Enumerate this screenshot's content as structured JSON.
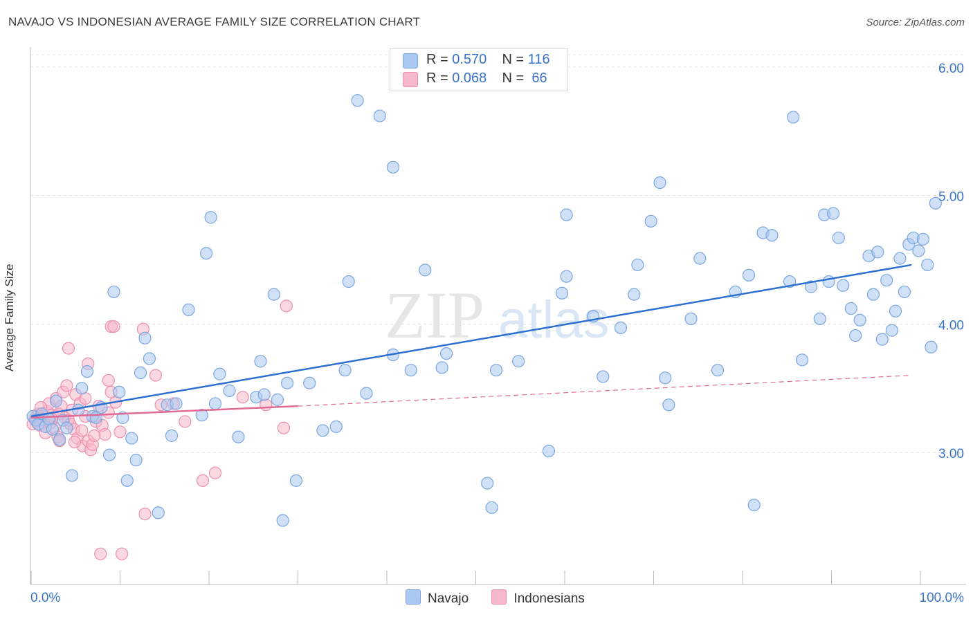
{
  "title": "NAVAJO VS INDONESIAN AVERAGE FAMILY SIZE CORRELATION CHART",
  "source": "Source: ZipAtlas.com",
  "watermark": {
    "zip": "ZIP",
    "atlas": "atlas"
  },
  "legend_top": [
    {
      "r_label": "R =",
      "r_value": "0.570",
      "n_label": "N =",
      "n_value": "116"
    },
    {
      "r_label": "R =",
      "r_value": "0.068",
      "n_label": "N =",
      "n_value": "66"
    }
  ],
  "legend_bottom": [
    "Navajo",
    "Indonesians"
  ],
  "colors": {
    "navajo_fill": "#aac8f0",
    "navajo_stroke": "#7aa6e0",
    "navajo_line": "#2b6fd0",
    "indo_fill": "#f6b8cb",
    "indo_stroke": "#ee8fae",
    "indo_line": "#e06a94",
    "axis_label": "#3a74c9",
    "grid": "#dddddd"
  },
  "chart_data": {
    "type": "scatter",
    "title": "NAVAJO VS INDONESIAN AVERAGE FAMILY SIZE CORRELATION CHART",
    "xlabel": "",
    "ylabel": "Average Family Size",
    "xlim": [
      0,
      100
    ],
    "ylim": [
      2.0,
      6.1
    ],
    "x_tick_labels": [
      "0.0%",
      "100.0%"
    ],
    "y_ticks": [
      3.0,
      4.0,
      5.0,
      6.0
    ],
    "y_tick_labels": [
      "3.00",
      "4.00",
      "5.00",
      "6.00"
    ],
    "grid": true,
    "series": [
      {
        "name": "Navajo",
        "trend": {
          "x": [
            0,
            99
          ],
          "y": [
            3.28,
            4.46
          ]
        },
        "points": [
          [
            0.2,
            3.28
          ],
          [
            0.5,
            3.25
          ],
          [
            0.8,
            3.22
          ],
          [
            1.2,
            3.3
          ],
          [
            1.6,
            3.2
          ],
          [
            2,
            3.26
          ],
          [
            2.4,
            3.18
          ],
          [
            2.8,
            3.4
          ],
          [
            3.2,
            3.1
          ],
          [
            3.6,
            3.25
          ],
          [
            4,
            3.19
          ],
          [
            4.6,
            2.82
          ],
          [
            5.3,
            3.33
          ],
          [
            5.7,
            3.5
          ],
          [
            6.3,
            3.63
          ],
          [
            6.9,
            3.28
          ],
          [
            7.3,
            3.27
          ],
          [
            7.9,
            3.35
          ],
          [
            8.8,
            2.98
          ],
          [
            9.3,
            4.25
          ],
          [
            9.9,
            3.47
          ],
          [
            10.3,
            3.27
          ],
          [
            10.8,
            2.78
          ],
          [
            11.3,
            3.11
          ],
          [
            11.8,
            2.94
          ],
          [
            12.3,
            3.62
          ],
          [
            12.8,
            3.89
          ],
          [
            13.3,
            3.73
          ],
          [
            14.3,
            2.53
          ],
          [
            15.3,
            3.37
          ],
          [
            15.8,
            3.13
          ],
          [
            16.3,
            3.38
          ],
          [
            17.7,
            4.11
          ],
          [
            19.2,
            3.29
          ],
          [
            19.7,
            4.55
          ],
          [
            20.2,
            4.83
          ],
          [
            20.7,
            3.38
          ],
          [
            21.2,
            3.61
          ],
          [
            22.3,
            3.48
          ],
          [
            23.3,
            3.12
          ],
          [
            25.3,
            3.43
          ],
          [
            25.8,
            3.71
          ],
          [
            26.2,
            3.45
          ],
          [
            27.3,
            4.23
          ],
          [
            27.7,
            3.41
          ],
          [
            28.3,
            2.47
          ],
          [
            28.8,
            3.54
          ],
          [
            29.8,
            2.78
          ],
          [
            31.3,
            3.54
          ],
          [
            32.8,
            3.17
          ],
          [
            34.3,
            3.2
          ],
          [
            35.3,
            3.64
          ],
          [
            35.7,
            4.33
          ],
          [
            36.7,
            5.74
          ],
          [
            37.7,
            3.46
          ],
          [
            39.2,
            5.62
          ],
          [
            40.7,
            3.76
          ],
          [
            40.7,
            5.22
          ],
          [
            42.7,
            3.64
          ],
          [
            44.3,
            4.42
          ],
          [
            46.2,
            3.66
          ],
          [
            46.7,
            3.77
          ],
          [
            51.3,
            2.76
          ],
          [
            51.8,
            2.57
          ],
          [
            52.3,
            3.64
          ],
          [
            54.8,
            3.71
          ],
          [
            58.2,
            3.01
          ],
          [
            59.7,
            4.24
          ],
          [
            60.2,
            4.37
          ],
          [
            60.2,
            4.85
          ],
          [
            63.2,
            4.06
          ],
          [
            64.3,
            3.59
          ],
          [
            66.3,
            3.97
          ],
          [
            67.8,
            4.23
          ],
          [
            68.2,
            4.46
          ],
          [
            69.7,
            4.8
          ],
          [
            70.7,
            5.1
          ],
          [
            71.3,
            3.58
          ],
          [
            71.7,
            3.37
          ],
          [
            74.2,
            4.04
          ],
          [
            75.2,
            4.51
          ],
          [
            77.2,
            3.64
          ],
          [
            79.2,
            4.25
          ],
          [
            80.7,
            4.38
          ],
          [
            81.3,
            2.59
          ],
          [
            82.3,
            4.71
          ],
          [
            83.3,
            4.69
          ],
          [
            85.3,
            4.33
          ],
          [
            85.7,
            5.61
          ],
          [
            86.7,
            3.72
          ],
          [
            87.7,
            4.29
          ],
          [
            88.7,
            4.04
          ],
          [
            89.2,
            4.85
          ],
          [
            89.7,
            4.33
          ],
          [
            90.2,
            4.86
          ],
          [
            90.8,
            4.67
          ],
          [
            91.3,
            4.3
          ],
          [
            92.2,
            4.12
          ],
          [
            92.7,
            3.91
          ],
          [
            93.2,
            4.03
          ],
          [
            94.2,
            4.53
          ],
          [
            94.7,
            4.23
          ],
          [
            95.2,
            4.56
          ],
          [
            95.7,
            3.88
          ],
          [
            96.2,
            4.34
          ],
          [
            96.8,
            3.95
          ],
          [
            97.2,
            4.1
          ],
          [
            97.7,
            4.51
          ],
          [
            98.2,
            4.25
          ],
          [
            98.7,
            4.62
          ],
          [
            99.2,
            4.67
          ],
          [
            99.8,
            4.57
          ],
          [
            100.3,
            4.66
          ],
          [
            100.8,
            4.46
          ],
          [
            101.2,
            3.82
          ],
          [
            101.7,
            4.94
          ]
        ]
      },
      {
        "name": "Indonesians",
        "trend": {
          "x": [
            0,
            30
          ],
          "y": [
            3.27,
            3.36
          ]
        },
        "trend_extended": {
          "x": [
            30,
            99
          ],
          "y": [
            3.36,
            3.6
          ]
        },
        "points": [
          [
            0.2,
            3.22
          ],
          [
            0.4,
            3.26
          ],
          [
            0.6,
            3.24
          ],
          [
            0.8,
            3.3
          ],
          [
            1,
            3.21
          ],
          [
            1.2,
            3.28
          ],
          [
            1.4,
            3.25
          ],
          [
            1.6,
            3.15
          ],
          [
            1.8,
            3.32
          ],
          [
            2,
            3.38
          ],
          [
            2.2,
            3.23
          ],
          [
            2.4,
            3.29
          ],
          [
            2.6,
            3.19
          ],
          [
            2.8,
            3.42
          ],
          [
            3,
            3.12
          ],
          [
            3.2,
            3.09
          ],
          [
            3.4,
            3.36
          ],
          [
            3.6,
            3.47
          ],
          [
            3.8,
            3.27
          ],
          [
            4,
            3.52
          ],
          [
            4.2,
            3.25
          ],
          [
            4.4,
            3.22
          ],
          [
            4.6,
            3.33
          ],
          [
            4.8,
            3.18
          ],
          [
            5,
            3.45
          ],
          [
            5.2,
            3.11
          ],
          [
            5.5,
            3.38
          ],
          [
            5.8,
            3.05
          ],
          [
            6.1,
            3.28
          ],
          [
            6.4,
            3.09
          ],
          [
            6.7,
            3.02
          ],
          [
            6.9,
            3.06
          ],
          [
            7.3,
            3.24
          ],
          [
            7.6,
            3.36
          ],
          [
            8,
            3.21
          ],
          [
            8.3,
            3.14
          ],
          [
            8.7,
            3.31
          ],
          [
            9,
            3.47
          ],
          [
            9.5,
            3.39
          ],
          [
            10,
            3.16
          ],
          [
            4.2,
            3.81
          ],
          [
            6.4,
            3.69
          ],
          [
            8.7,
            3.56
          ],
          [
            9,
            3.98
          ],
          [
            9.3,
            3.98
          ],
          [
            12.6,
            3.96
          ],
          [
            14,
            3.6
          ],
          [
            14.6,
            3.37
          ],
          [
            7.8,
            2.21
          ],
          [
            10.2,
            2.21
          ],
          [
            12.8,
            2.52
          ],
          [
            16,
            3.38
          ],
          [
            17.3,
            3.24
          ],
          [
            19.3,
            2.78
          ],
          [
            20.7,
            2.84
          ],
          [
            23.8,
            3.43
          ],
          [
            26.4,
            3.37
          ],
          [
            28.4,
            3.19
          ],
          [
            28.7,
            4.14
          ],
          [
            3.1,
            3.3
          ],
          [
            5.7,
            3.17
          ],
          [
            7.1,
            3.13
          ],
          [
            2.3,
            3.26
          ],
          [
            4.9,
            3.08
          ],
          [
            1.1,
            3.35
          ],
          [
            6.1,
            3.42
          ]
        ]
      }
    ]
  }
}
